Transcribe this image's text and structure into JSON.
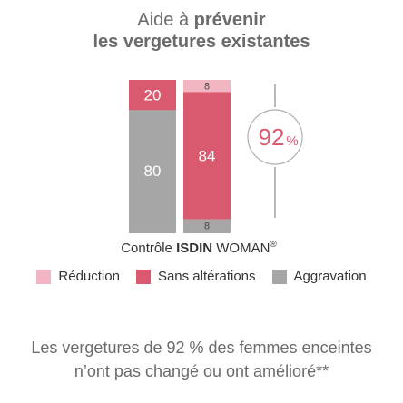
{
  "title": {
    "line1_prefix": "Aide à ",
    "line1_bold": "prévenir",
    "line2": "les vergetures existantes"
  },
  "chart_data": {
    "type": "bar",
    "stacked": true,
    "categories": [
      "Contrôle",
      "ISDIN WOMAN®"
    ],
    "series": [
      {
        "name": "Réduction",
        "color": "#f2b6c2",
        "values": [
          0,
          8
        ]
      },
      {
        "name": "Sans altérations",
        "color": "#d9596e",
        "values": [
          20,
          84
        ]
      },
      {
        "name": "Aggravation",
        "color": "#a6a6a6",
        "values": [
          80,
          8
        ]
      }
    ],
    "ylim": [
      0,
      100
    ],
    "highlight": {
      "label_number": "92",
      "label_unit": "%",
      "category": "ISDIN WOMAN®"
    },
    "category_label": {
      "control": "Contrôle",
      "brand": "ISDIN",
      "product": " WOMAN",
      "mark": "®"
    }
  },
  "legend": [
    {
      "label": "Réduction",
      "color": "#f2b6c2"
    },
    {
      "label": "Sans altérations",
      "color": "#d9596e"
    },
    {
      "label": "Aggravation",
      "color": "#a6a6a6"
    }
  ],
  "footer": {
    "line1": "Les vergetures de 92 % des femmes enceintes",
    "line2": "n’ont pas changé ou ont amélioré**"
  }
}
